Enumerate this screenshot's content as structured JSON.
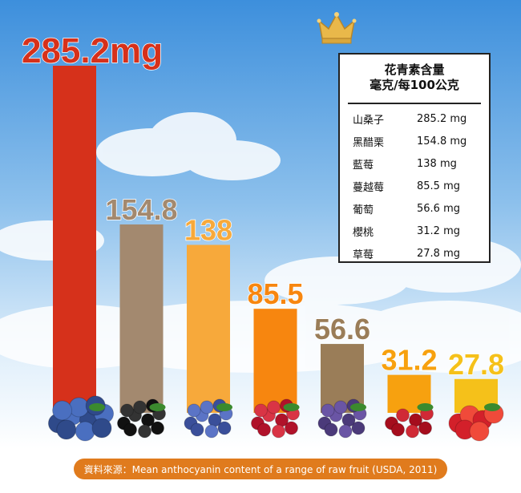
{
  "chart_data": {
    "type": "bar",
    "categories": [
      "山桑子",
      "黑醋栗",
      "藍莓",
      "蔓越莓",
      "葡萄",
      "櫻桃",
      "草莓"
    ],
    "values": [
      285.2,
      154.8,
      138,
      85.5,
      56.6,
      31.2,
      27.8
    ],
    "value_labels": [
      "285.2mg",
      "154.8",
      "138",
      "85.5",
      "56.6",
      "31.2",
      "27.8"
    ],
    "bar_colors": [
      "#d6311b",
      "#a3896f",
      "#f7a93b",
      "#f7860f",
      "#9a7d58",
      "#f7a10f",
      "#f5c11a"
    ],
    "label_colors": [
      "#d6311b",
      "#a3896f",
      "#f7a93b",
      "#f7860f",
      "#9a7d58",
      "#f7a10f",
      "#f5c11a"
    ],
    "ylim": [
      0,
      285.2
    ],
    "grid": false,
    "legend_table": {
      "title_line1": "花青素含量",
      "title_line2": "毫克/每100公克",
      "rows": [
        {
          "name": "山桑子",
          "value": "285.2 mg"
        },
        {
          "name": "黑醋栗",
          "value": "154.8 mg"
        },
        {
          "name": "藍莓",
          "value": "138 mg"
        },
        {
          "name": "蔓越莓",
          "value": "85.5 mg"
        },
        {
          "name": "葡萄",
          "value": "56.6 mg"
        },
        {
          "name": "櫻桃",
          "value": "31.2 mg"
        },
        {
          "name": "草莓",
          "value": "27.8 mg"
        }
      ]
    }
  },
  "fruit_icons": [
    "bilberry-icon",
    "blackcurrant-icon",
    "blueberry-icon",
    "cranberry-icon",
    "grape-icon",
    "cherry-icon",
    "strawberry-icon"
  ],
  "source": "資料來源：Mean anthocyanin content of a range of raw fruit (USDA, 2011)",
  "colors": {
    "sky_top": "#4a9be0",
    "sky_bottom": "#e8f3fc",
    "crown": "#e9b84a",
    "source_pill": "#e07b1d"
  }
}
